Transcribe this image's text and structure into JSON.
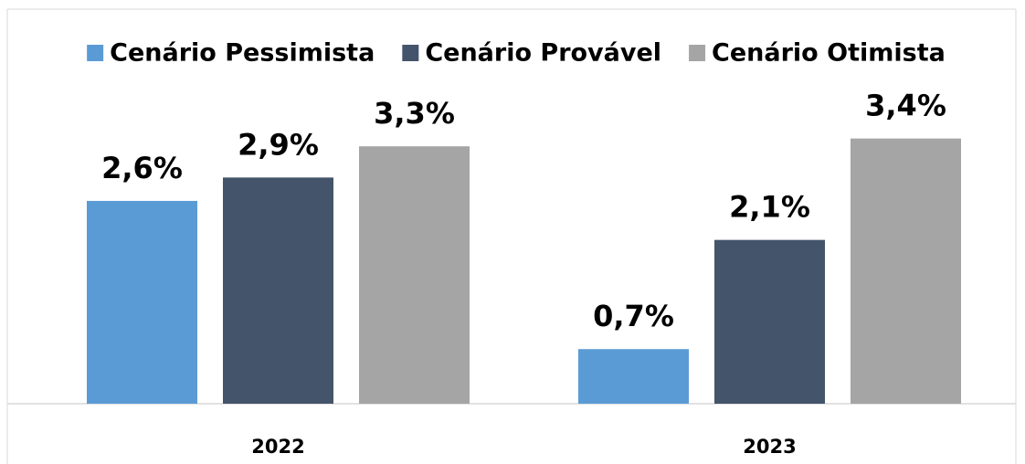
{
  "chart_data": {
    "type": "bar",
    "categories": [
      "2022",
      "2023"
    ],
    "series": [
      {
        "name": "Cenário Pessimista",
        "color": "#5b9bd5",
        "values": [
          2.6,
          0.7
        ],
        "value_labels": [
          "2,6%",
          "0,7%"
        ]
      },
      {
        "name": "Cenário Provável",
        "color": "#44546a",
        "values": [
          2.9,
          2.1
        ],
        "value_labels": [
          "2,9%",
          "2,1%"
        ]
      },
      {
        "name": "Cenário Otimista",
        "color": "#a5a5a5",
        "values": [
          3.3,
          3.4
        ],
        "value_labels": [
          "3,3%",
          "3,4%"
        ]
      }
    ],
    "legend": "top"
  }
}
